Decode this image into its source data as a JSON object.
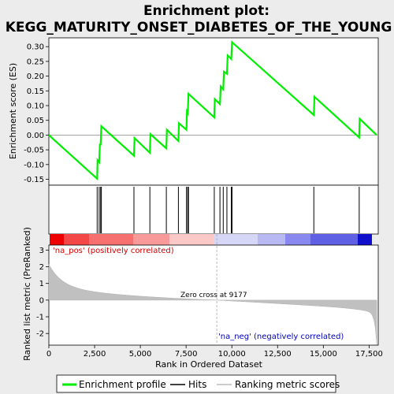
{
  "chart_data": {
    "type": "line",
    "title_line1": "Enrichment plot:",
    "title_line2": "KEGG_MATURITY_ONSET_DIABETES_OF_THE_YOUNG",
    "ylabel_top": "Enrichment score (ES)",
    "ylabel_bottom": "Ranked list metric (PreRanked)",
    "xlabel": "Rank in Ordered Dataset",
    "xlim": [
      0,
      18000
    ],
    "x_ticks": [
      0,
      2500,
      5000,
      7500,
      10000,
      12500,
      15000,
      17500
    ],
    "x_tick_labels": [
      "0",
      "2,500",
      "5,000",
      "7,500",
      "10,000",
      "12,500",
      "15,000",
      "17,500"
    ],
    "es_ylim": [
      -0.17,
      0.33
    ],
    "es_ticks": [
      -0.15,
      -0.1,
      -0.05,
      0.0,
      0.05,
      0.1,
      0.15,
      0.2,
      0.25,
      0.3
    ],
    "es_tick_labels": [
      "-0.15",
      "-0.10",
      "-0.05",
      "0.00",
      "0.05",
      "0.10",
      "0.15",
      "0.20",
      "0.25",
      "0.30"
    ],
    "metric_ylim": [
      -2.7,
      3.3
    ],
    "metric_ticks": [
      3,
      2,
      1,
      0,
      -1,
      -2
    ],
    "metric_tick_labels": [
      "3",
      "2",
      "1",
      "0",
      "-1",
      "-2"
    ],
    "enrichment_profile": [
      [
        0,
        0.0
      ],
      [
        2640,
        -0.148
      ],
      [
        2660,
        -0.085
      ],
      [
        2750,
        -0.092
      ],
      [
        2790,
        -0.03
      ],
      [
        2830,
        -0.035
      ],
      [
        2870,
        0.03
      ],
      [
        4650,
        -0.07
      ],
      [
        4680,
        -0.01
      ],
      [
        5520,
        -0.06
      ],
      [
        5550,
        0.003
      ],
      [
        6420,
        -0.045
      ],
      [
        6450,
        0.018
      ],
      [
        7080,
        -0.02
      ],
      [
        7110,
        0.04
      ],
      [
        7520,
        0.018
      ],
      [
        7550,
        0.08
      ],
      [
        7590,
        0.075
      ],
      [
        7630,
        0.14
      ],
      [
        9040,
        0.06
      ],
      [
        9070,
        0.122
      ],
      [
        9350,
        0.105
      ],
      [
        9390,
        0.165
      ],
      [
        9530,
        0.155
      ],
      [
        9570,
        0.215
      ],
      [
        9730,
        0.208
      ],
      [
        9770,
        0.27
      ],
      [
        9970,
        0.258
      ],
      [
        10010,
        0.315
      ],
      [
        14480,
        0.068
      ],
      [
        14510,
        0.13
      ],
      [
        16960,
        -0.008
      ],
      [
        16990,
        0.055
      ],
      [
        17920,
        0.0
      ]
    ],
    "hits": [
      2640,
      2750,
      2830,
      2870,
      4650,
      5520,
      6420,
      7080,
      7520,
      7590,
      7630,
      9040,
      9350,
      9530,
      9730,
      9970,
      10010,
      14480,
      16960
    ],
    "zero_cross": 9177,
    "annotation_pos": "'na_pos' (positively correlated)",
    "annotation_neg": "'na_neg' (negatively correlated)",
    "annotation_zero": "Zero cross at 9177",
    "legend": [
      {
        "label": "Enrichment profile",
        "color": "#00ee00"
      },
      {
        "label": "Hits",
        "color": "#000000"
      },
      {
        "label": "Ranking metric scores",
        "color": "#bbbbbb"
      }
    ],
    "legend_placement": "bottom",
    "profile_color": "#00ee00",
    "metric_fill_color": "#c0c0c0"
  }
}
